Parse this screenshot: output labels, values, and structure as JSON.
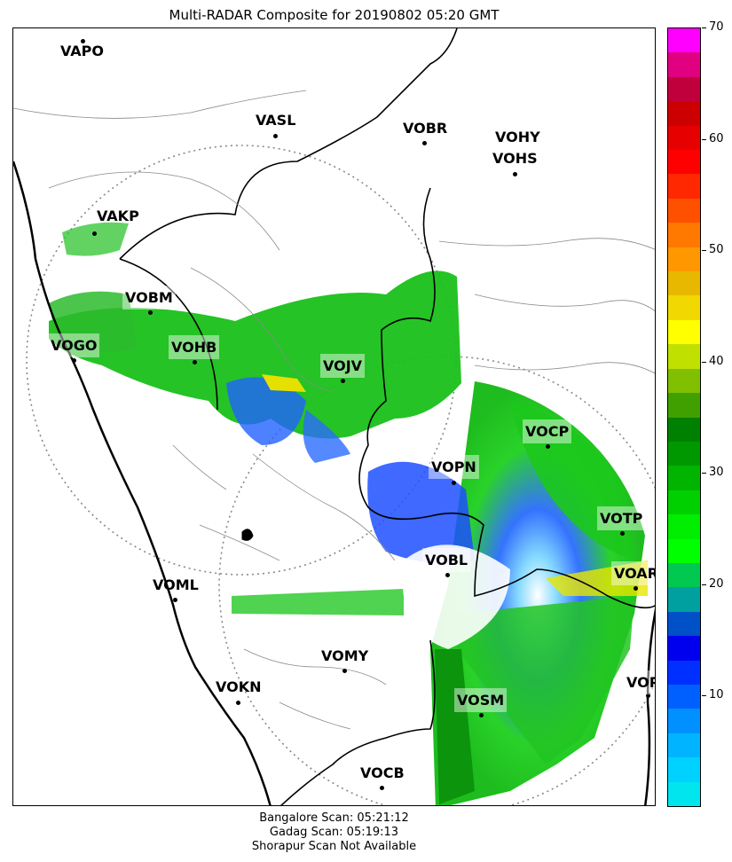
{
  "title": "Multi-RADAR Composite for 20190802 05:20 GMT",
  "stations": [
    {
      "name": "VAPO",
      "highlight": false
    },
    {
      "name": "VASL",
      "highlight": false
    },
    {
      "name": "VOBR",
      "highlight": false
    },
    {
      "name": "VOHY",
      "highlight": false
    },
    {
      "name": "VOHS",
      "highlight": false
    },
    {
      "name": "VAKP",
      "highlight": false
    },
    {
      "name": "VOBM",
      "highlight": true
    },
    {
      "name": "VOGO",
      "highlight": true
    },
    {
      "name": "VOHB",
      "highlight": true
    },
    {
      "name": "VOJV",
      "highlight": true
    },
    {
      "name": "VOCP",
      "highlight": true
    },
    {
      "name": "VOPN",
      "highlight": true
    },
    {
      "name": "VOTP",
      "highlight": true
    },
    {
      "name": "VOBL",
      "highlight": true
    },
    {
      "name": "VOAR",
      "highlight": true
    },
    {
      "name": "VOML",
      "highlight": false
    },
    {
      "name": "VOMY",
      "highlight": false
    },
    {
      "name": "VOKN",
      "highlight": false
    },
    {
      "name": "VOSM",
      "highlight": true
    },
    {
      "name": "VOPC",
      "highlight": true
    },
    {
      "name": "VOCB",
      "highlight": false
    }
  ],
  "colorbar": {
    "min": 0,
    "max": 70,
    "ticks": [
      "10",
      "20",
      "30",
      "40",
      "50",
      "60",
      "70"
    ],
    "colors": [
      "#00e5ee",
      "#00d2ff",
      "#00b4ff",
      "#0090ff",
      "#0060ff",
      "#0030ff",
      "#0000ee",
      "#0050c8",
      "#00a0a0",
      "#00c850",
      "#00ff00",
      "#00ee00",
      "#00d000",
      "#00b400",
      "#009800",
      "#008000",
      "#40a000",
      "#80c000",
      "#c0e000",
      "#ffff00",
      "#f0d800",
      "#e8b800",
      "#ff9800",
      "#ff7800",
      "#ff5000",
      "#ff2800",
      "#ff0000",
      "#e60000",
      "#cc0000",
      "#c0003c",
      "#e00080",
      "#ff00ff"
    ]
  },
  "footer": [
    "Bangalore Scan: 05:21:12",
    "Gadag Scan: 05:19:13",
    "Shorapur Scan Not Available"
  ]
}
